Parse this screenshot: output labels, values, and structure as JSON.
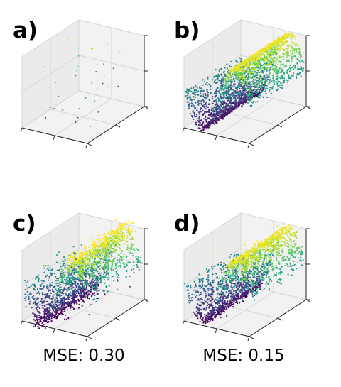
{
  "chart_data": [
    {
      "type": "scatter",
      "plot": "3d",
      "panel_label": "a)",
      "caption": "",
      "colormap": "viridis",
      "x": [
        0.45,
        -0.62,
        0.12,
        0.7,
        -0.3,
        0.25,
        -0.8,
        0.55,
        -0.15,
        0.85,
        0.05,
        -0.5,
        0.35,
        -0.72,
        0.6,
        -0.05,
        0.15,
        -0.4,
        0.78,
        -0.22,
        0.4,
        -0.88,
        0.02,
        0.66,
        -0.58,
        0.28,
        -0.1,
        0.52,
        -0.35,
        0.9,
        0.2,
        -0.68,
        0.48,
        -0.45,
        0.1,
        0.74,
        -0.25,
        0.33,
        -0.78,
        0.62
      ],
      "y": [
        -0.7,
        0.55,
        0.2,
        -0.3,
        0.8,
        -0.55,
        0.1,
        0.65,
        -0.85,
        0.35,
        -0.2,
        -0.6,
        0.45,
        -0.15,
        0.05,
        0.75,
        -0.4,
        0.3,
        -0.65,
        -0.9,
        0.6,
        -0.35,
        0.88,
        0.15,
        -0.05,
        0.4,
        -0.75,
        -0.1,
        0.7,
        -0.5,
        0.25,
        0.52,
        -0.25,
        -0.8,
        0.62,
        -0.45,
        0.12,
        0.85,
        0.38,
        -0.62
      ],
      "z": [
        -0.55,
        0.3,
        0.85,
        0.1,
        -0.2,
        -0.8,
        0.45,
        0.6,
        -0.35,
        0.75,
        -0.65,
        0.05,
        0.9,
        -0.1,
        0.25,
        -0.45,
        0.55,
        0.7,
        -0.75,
        -0.3,
        0.15,
        0.4,
        -0.6,
        0.8,
        -0.9,
        0.35,
        -0.05,
        0.65,
        0.5,
        -0.4,
        0.95,
        -0.25,
        0.2,
        -0.7,
        0.6,
        -0.15,
        0.3,
        -0.5,
        0.85,
        0.0
      ],
      "xlim": [
        -1,
        1
      ],
      "ylim": [
        -1,
        1
      ],
      "zlim": [
        -1,
        1
      ]
    },
    {
      "type": "scatter",
      "plot": "3d",
      "panel_label": "b)",
      "caption": "",
      "colormap": "viridis",
      "surface": "z = sin(pi*x)",
      "xlim": [
        -1,
        1
      ],
      "ylim": [
        -1,
        1
      ],
      "zlim": [
        -1,
        1
      ]
    },
    {
      "type": "scatter",
      "plot": "3d",
      "panel_label": "c)",
      "caption": "MSE: 0.30",
      "colormap": "viridis",
      "surface": "noisy reconstruction of z = sin(pi*x)",
      "xlim": [
        -1,
        1
      ],
      "ylim": [
        -1,
        1
      ],
      "zlim": [
        -1,
        1
      ]
    },
    {
      "type": "scatter",
      "plot": "3d",
      "panel_label": "d)",
      "caption": "MSE: 0.15",
      "colormap": "viridis",
      "surface": "reconstruction of z = sin(pi*x)",
      "xlim": [
        -1,
        1
      ],
      "ylim": [
        -1,
        1
      ],
      "zlim": [
        -1,
        1
      ]
    }
  ]
}
